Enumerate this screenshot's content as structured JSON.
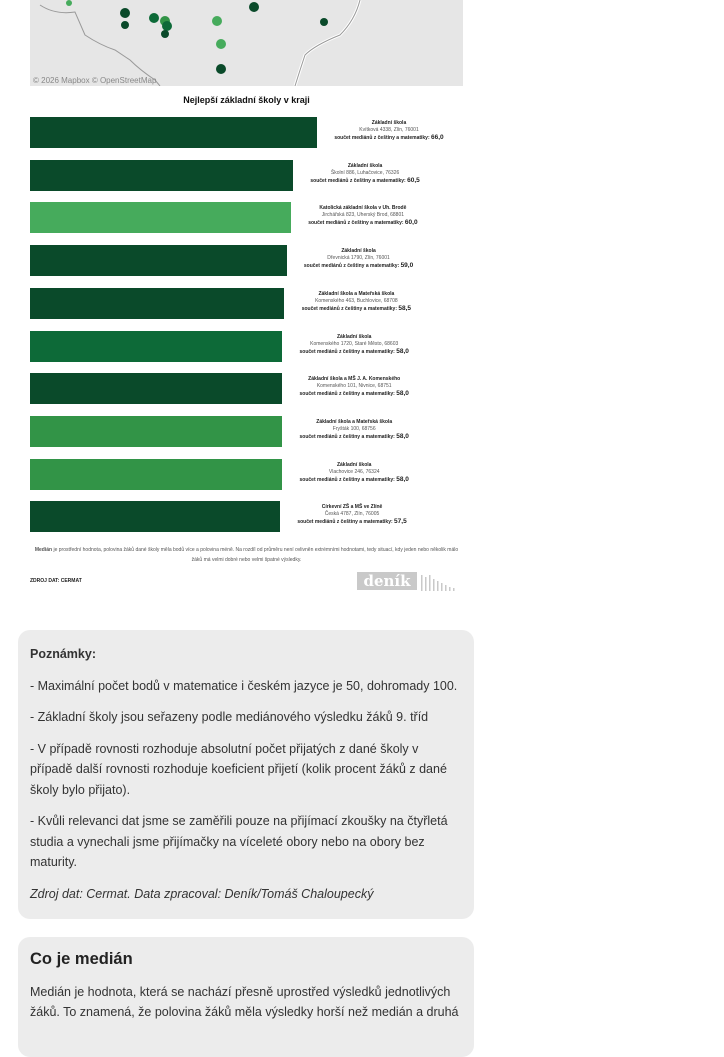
{
  "map": {
    "attribution": "© 2026 Mapbox © OpenStreetMap"
  },
  "colors": {
    "dark": "#0a4a2a",
    "mid": "#0d6a38",
    "light": "#46ab5c",
    "mid_light": "#329447"
  },
  "chart_data": {
    "type": "bar",
    "orientation": "horizontal",
    "title": "Nejlepší základní školy v kraji",
    "value_label": "součet mediánů z češtiny a matematiky:",
    "categories": [
      {
        "name": "Základní škola",
        "address": "Kvítková 4338, Zlín, 76001"
      },
      {
        "name": "Základní škola",
        "address": "Školní 886, Luhačovice, 76326"
      },
      {
        "name": "Katolická základní škola v Uh. Brodě",
        "address": "Jirchářská 823, Uherský Brod, 68801"
      },
      {
        "name": "Základní škola",
        "address": "Dřevnická 1790, Zlín, 76001"
      },
      {
        "name": "Základní škola a Mateřská škola",
        "address": "Komenského 463, Buchlovice, 68708"
      },
      {
        "name": "Základní škola",
        "address": "Komenského 1720, Staré Město, 68603"
      },
      {
        "name": "Základní škola a MŠ J. A. Komenského",
        "address": "Komenského 101, Nivnice, 68751"
      },
      {
        "name": "Základní škola a Mateřská škola",
        "address": "Fryšták 100, 68756"
      },
      {
        "name": "Základní škola",
        "address": "Vlachovice 246, 76324"
      },
      {
        "name": "Církevní ZŠ a MŠ ve Zlíně",
        "address": "Česká 4787, Zlín, 76005"
      }
    ],
    "values": [
      "66,0",
      "60,5",
      "60,0",
      "59,0",
      "58,5",
      "58,0",
      "58,0",
      "58,0",
      "58,0",
      "57,5"
    ],
    "bar_colors": [
      "dark",
      "dark",
      "light",
      "dark",
      "dark",
      "mid",
      "dark",
      "mid_light",
      "mid_light",
      "dark"
    ],
    "xlim": [
      0,
      66
    ]
  },
  "footnote": {
    "bold": "Medián",
    "text": " je prostřední hodnota, polovina žáků dané školy měla bodů více a polovina méně. Na rozdíl od průměru není ovlivněn extrémními hodnotami, tedy situací, kdy jeden nebo několik málo žáků má velmi dobré nebo velmi špatné výsledky."
  },
  "source": "ZDROJ DAT: CERMAT",
  "logo": "deník",
  "notes": {
    "title": "Poznámky:",
    "items": [
      "- Maximální počet bodů v matematice i českém jazyce je 50, dohromady 100.",
      "- Základní školy jsou seřazeny podle mediánového výsledku žáků 9. tříd",
      "- V případě rovnosti rozhoduje absolutní počet přijatých z dané školy v případě další rovnosti rozhoduje koeficient přijetí (kolik procent žáků z dané školy bylo přijato).",
      "- Kvůli relevanci dat jsme se zaměřili pouze na přijímací zkoušky na čtyřletá studia a vynechali jsme přijímačky na víceleté obory nebo na obory bez maturity."
    ],
    "credit": "Zdroj dat: Cermat. Data zpracoval: Deník/Tomáš Chaloupecký"
  },
  "median": {
    "title": "Co je medián",
    "text": "Medián je hodnota, která se nachází přesně uprostřed výsledků jednotlivých žáků. To znamená, že polovina žáků měla výsledky horší než medián a druhá"
  }
}
